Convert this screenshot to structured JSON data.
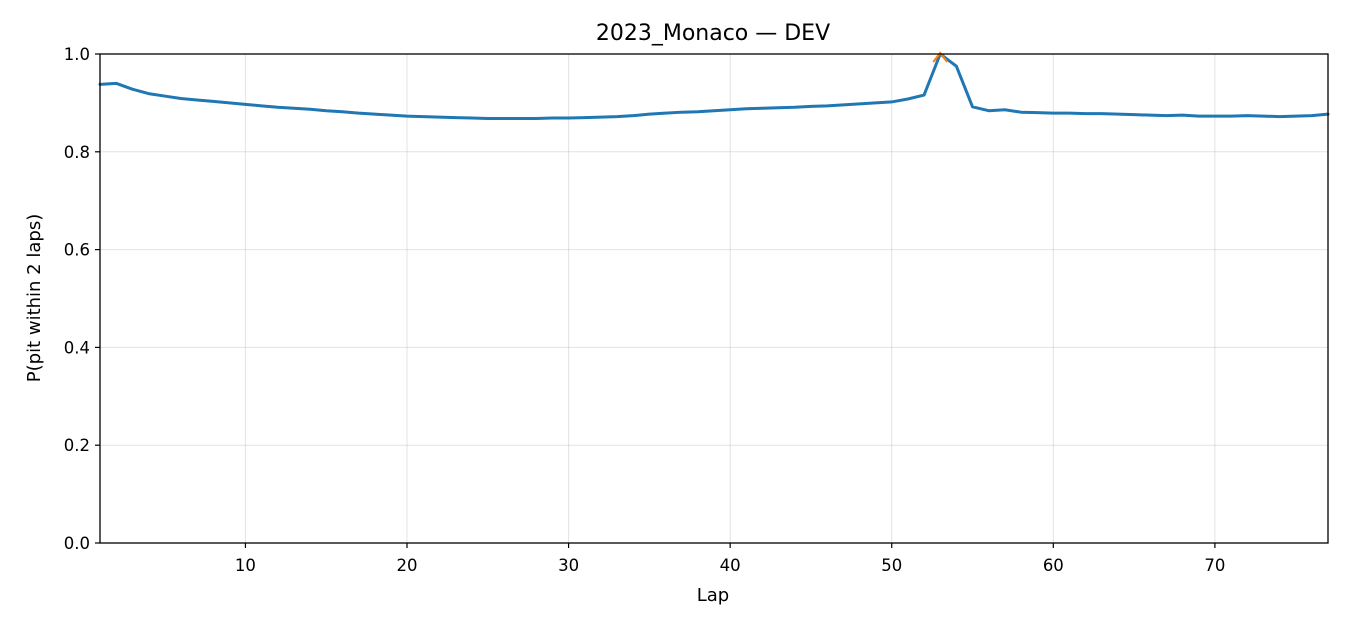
{
  "chart_data": {
    "type": "line",
    "title": "2023_Monaco — DEV",
    "xlabel": "Lap",
    "ylabel": "P(pit within 2 laps)",
    "xlim": [
      1,
      77
    ],
    "ylim": [
      0,
      1
    ],
    "xticks": [
      10,
      20,
      30,
      40,
      50,
      60,
      70
    ],
    "yticks": [
      0.0,
      0.2,
      0.4,
      0.6,
      0.8,
      1.0
    ],
    "ytick_labels": [
      "0.0",
      "0.2",
      "0.4",
      "0.6",
      "0.8",
      "1.0"
    ],
    "grid": true,
    "colors": {
      "line": "#1f77b4",
      "marker": "#ff7f0e"
    },
    "series": [
      {
        "x": [
          1,
          2,
          3,
          4,
          5,
          6,
          7,
          8,
          9,
          10,
          11,
          12,
          13,
          14,
          15,
          16,
          17,
          18,
          19,
          20,
          21,
          22,
          23,
          24,
          25,
          26,
          27,
          28,
          29,
          30,
          31,
          32,
          33,
          34,
          35,
          36,
          37,
          38,
          39,
          40,
          41,
          42,
          43,
          44,
          45,
          46,
          47,
          48,
          49,
          50,
          51,
          52,
          53,
          54,
          55,
          56,
          57,
          58,
          59,
          60,
          61,
          62,
          63,
          64,
          65,
          66,
          67,
          68,
          69,
          70,
          71,
          72,
          73,
          74,
          75,
          76,
          77
        ],
        "y": [
          0.938,
          0.94,
          0.928,
          0.919,
          0.914,
          0.909,
          0.906,
          0.903,
          0.9,
          0.897,
          0.894,
          0.891,
          0.889,
          0.887,
          0.884,
          0.882,
          0.879,
          0.877,
          0.875,
          0.873,
          0.872,
          0.871,
          0.87,
          0.869,
          0.868,
          0.868,
          0.868,
          0.868,
          0.869,
          0.869,
          0.87,
          0.871,
          0.872,
          0.874,
          0.877,
          0.879,
          0.881,
          0.882,
          0.884,
          0.886,
          0.888,
          0.889,
          0.89,
          0.891,
          0.893,
          0.894,
          0.896,
          0.898,
          0.9,
          0.902,
          0.908,
          0.916,
          1.0,
          0.975,
          0.892,
          0.884,
          0.886,
          0.881,
          0.88,
          0.879,
          0.879,
          0.878,
          0.878,
          0.877,
          0.876,
          0.875,
          0.874,
          0.875,
          0.873,
          0.873,
          0.873,
          0.874,
          0.873,
          0.872,
          0.873,
          0.874,
          0.877
        ]
      }
    ],
    "markers": [
      {
        "x": 53,
        "y": 1.0,
        "shape": "caret-up"
      }
    ]
  }
}
